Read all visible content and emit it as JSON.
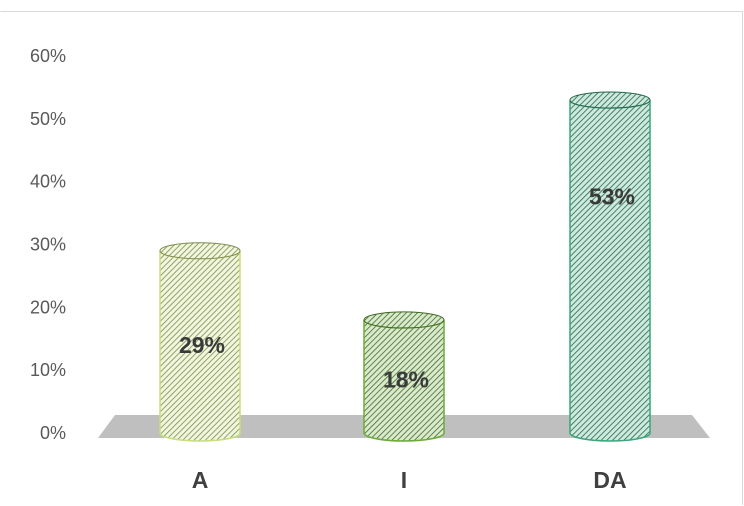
{
  "colors": {
    "bar_A": "#c5e07a",
    "bar_I": "#6bab3a",
    "bar_DA": "#3aa67a",
    "floor": "#bfbfbf",
    "border": "#d9d9d9"
  },
  "chart_data": {
    "type": "bar",
    "style": "3d-cylinder",
    "categories": [
      "A",
      "I",
      "DA"
    ],
    "values": [
      29,
      18,
      53
    ],
    "data_labels": [
      "29%",
      "18%",
      "53%"
    ],
    "ylim": [
      0,
      60
    ],
    "y_ticks": [
      0,
      10,
      20,
      30,
      40,
      50,
      60
    ],
    "y_tick_labels": [
      "0%",
      "10%",
      "20%",
      "30%",
      "40%",
      "50%",
      "60%"
    ],
    "grid": false,
    "legend": "none"
  }
}
